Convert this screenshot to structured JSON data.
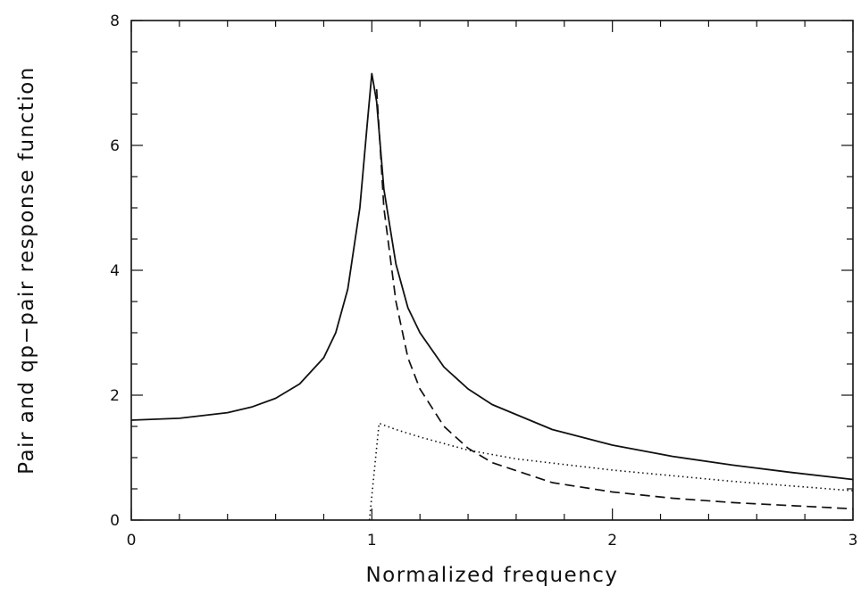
{
  "chart_data": {
    "type": "line",
    "xlabel": "Normalized frequency",
    "ylabel": "Pair and qp−pair response function",
    "xlim": [
      0,
      3
    ],
    "ylim": [
      0,
      8
    ],
    "xticks": [
      "0",
      "1",
      "2",
      "3"
    ],
    "yticks": [
      "0",
      "2",
      "4",
      "6",
      "8"
    ],
    "grid": false,
    "legend": "none",
    "series": [
      {
        "style": "solid",
        "x": [
          0,
          0.2,
          0.4,
          0.5,
          0.6,
          0.7,
          0.8,
          0.85,
          0.9,
          0.95,
          0.98,
          1.0,
          1.02,
          1.05,
          1.1,
          1.15,
          1.2,
          1.3,
          1.4,
          1.5,
          1.75,
          2.0,
          2.25,
          2.5,
          2.75,
          3.0
        ],
        "y": [
          1.6,
          1.63,
          1.72,
          1.81,
          1.95,
          2.18,
          2.6,
          3.0,
          3.7,
          5.0,
          6.3,
          7.15,
          6.7,
          5.3,
          4.1,
          3.4,
          3.0,
          2.45,
          2.1,
          1.85,
          1.45,
          1.2,
          1.02,
          0.88,
          0.76,
          0.65
        ]
      },
      {
        "style": "dashed",
        "x": [
          1.02,
          1.05,
          1.1,
          1.15,
          1.2,
          1.3,
          1.4,
          1.5,
          1.75,
          2.0,
          2.25,
          2.5,
          2.75,
          3.0
        ],
        "y": [
          6.9,
          5.0,
          3.5,
          2.6,
          2.1,
          1.5,
          1.15,
          0.92,
          0.6,
          0.45,
          0.35,
          0.28,
          0.23,
          0.18
        ]
      },
      {
        "style": "dotted",
        "x": [
          0.99,
          1.03,
          1.1,
          1.2,
          1.4,
          1.6,
          2.0,
          2.5,
          3.0
        ],
        "y": [
          0,
          1.55,
          1.45,
          1.33,
          1.12,
          0.98,
          0.8,
          0.62,
          0.47
        ]
      }
    ]
  }
}
